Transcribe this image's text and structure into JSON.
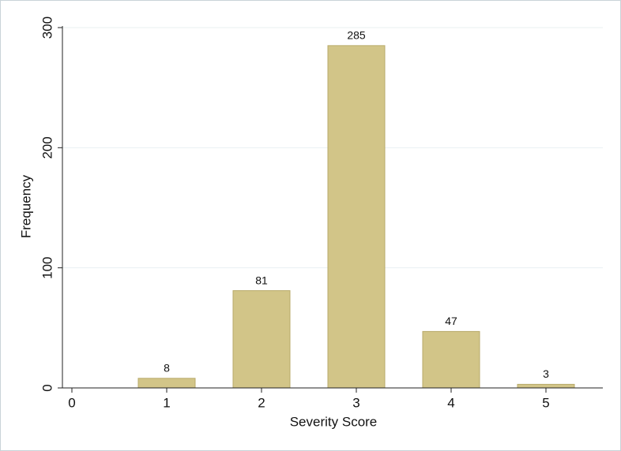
{
  "chart_data": {
    "type": "bar",
    "x_label": "Severity Score",
    "y_label": "Frequency",
    "x": [
      1,
      2,
      3,
      4,
      5
    ],
    "values": [
      8,
      81,
      285,
      47,
      3
    ],
    "color": "#d2c588",
    "xlim": [
      -0.1,
      5.6
    ],
    "xticks": [
      0,
      1,
      2,
      3,
      4,
      5
    ],
    "ylim": [
      0,
      300
    ],
    "yticks": [
      0,
      100,
      200,
      300
    ],
    "grid": true
  }
}
